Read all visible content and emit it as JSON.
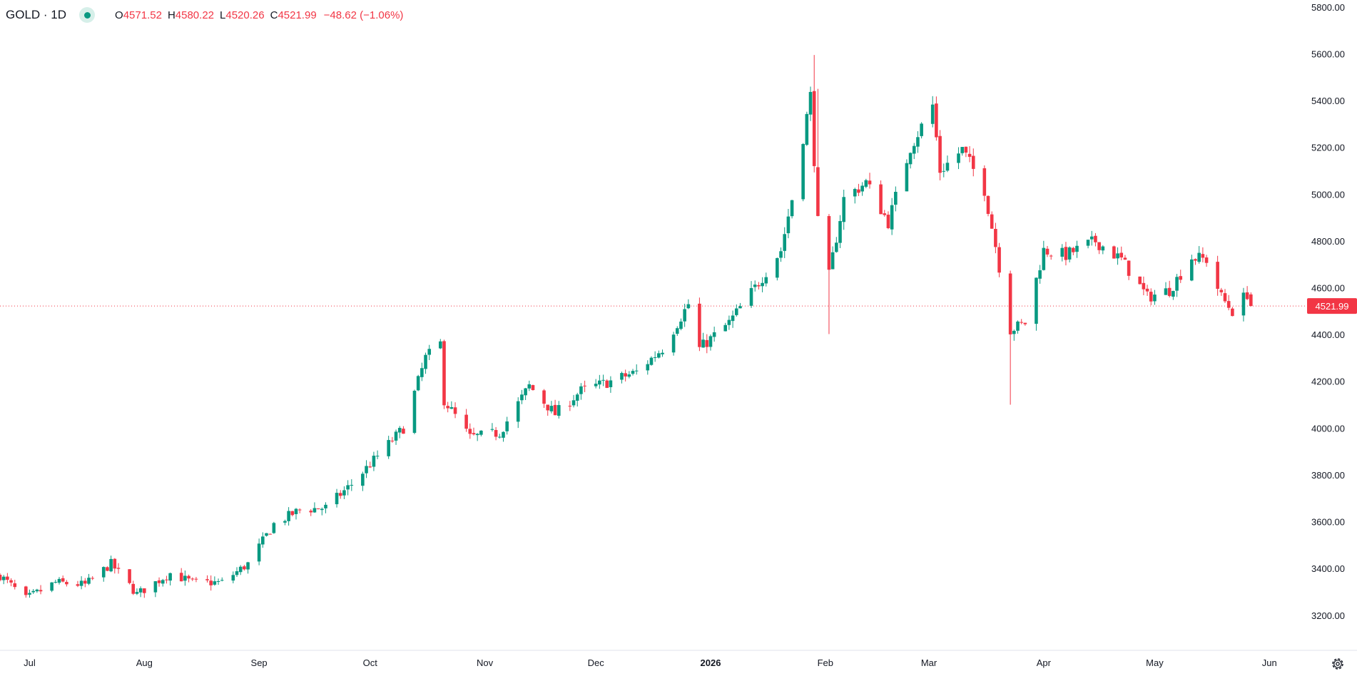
{
  "legend": {
    "symbol": "GOLD · 1D",
    "open_label": "O",
    "open": "4571.52",
    "high_label": "H",
    "high": "4580.22",
    "low_label": "L",
    "low": "4520.26",
    "close_label": "C",
    "close": "4521.99",
    "change": "−48.62 (−1.06%)",
    "status_color": "#089981"
  },
  "colors": {
    "up": "#089981",
    "down": "#f23645",
    "axis_text": "#131722",
    "price_line": "#f23645"
  },
  "settings_icon": "gear-icon",
  "chart_data": {
    "type": "candlestick",
    "title": "",
    "ylim": [
      3050,
      5830
    ],
    "y_ticks": [
      3200,
      3400,
      3600,
      3800,
      4000,
      4200,
      4400,
      4600,
      4800,
      5000,
      5200,
      5400,
      5600,
      5800
    ],
    "y_tick_labels": [
      "3200.00",
      "3400.00",
      "3600.00",
      "3800.00",
      "4000.00",
      "4200.00",
      "4400.00",
      "4600.00",
      "4800.00",
      "5000.00",
      "5200.00",
      "5400.00",
      "5600.00",
      "5800.00"
    ],
    "x_labels": [
      {
        "label": "Jul",
        "date": "2025-07-01"
      },
      {
        "label": "Aug",
        "date": "2025-08-01"
      },
      {
        "label": "Sep",
        "date": "2025-09-01"
      },
      {
        "label": "Oct",
        "date": "2025-10-01"
      },
      {
        "label": "Nov",
        "date": "2025-11-01"
      },
      {
        "label": "Dec",
        "date": "2025-12-01"
      },
      {
        "label": "2026",
        "date": "2026-01-01",
        "bold": true
      },
      {
        "label": "Feb",
        "date": "2026-02-01"
      },
      {
        "label": "Mar",
        "date": "2026-03-01"
      },
      {
        "label": "Apr",
        "date": "2026-04-01"
      },
      {
        "label": "May",
        "date": "2026-05-01"
      },
      {
        "label": "Jun",
        "date": "2026-06-01"
      }
    ],
    "last_price": 4521.99,
    "last_price_label": "4521.99",
    "anchors": [
      [
        "2025-06-23",
        3370
      ],
      [
        "2025-06-30",
        3270
      ],
      [
        "2025-07-08",
        3340
      ],
      [
        "2025-07-16",
        3330
      ],
      [
        "2025-07-23",
        3420
      ],
      [
        "2025-07-30",
        3290
      ],
      [
        "2025-08-08",
        3380
      ],
      [
        "2025-08-14",
        3340
      ],
      [
        "2025-08-22",
        3340
      ],
      [
        "2025-08-29",
        3420
      ],
      [
        "2025-09-05",
        3590
      ],
      [
        "2025-09-12",
        3650
      ],
      [
        "2025-09-19",
        3660
      ],
      [
        "2025-09-26",
        3760
      ],
      [
        "2025-10-03",
        3880
      ],
      [
        "2025-10-10",
        4000
      ],
      [
        "2025-10-16",
        4300
      ],
      [
        "2025-10-20",
        4360
      ],
      [
        "2025-10-21",
        4120
      ],
      [
        "2025-10-28",
        3960
      ],
      [
        "2025-11-05",
        3980
      ],
      [
        "2025-11-13",
        4180
      ],
      [
        "2025-11-20",
        4060
      ],
      [
        "2025-11-27",
        4160
      ],
      [
        "2025-12-05",
        4200
      ],
      [
        "2025-12-12",
        4240
      ],
      [
        "2025-12-19",
        4340
      ],
      [
        "2025-12-26",
        4530
      ],
      [
        "2025-12-29",
        4340
      ],
      [
        "2026-01-06",
        4450
      ],
      [
        "2026-01-13",
        4600
      ],
      [
        "2026-01-20",
        4760
      ],
      [
        "2026-01-23",
        4980
      ],
      [
        "2026-01-28",
        5420
      ],
      [
        "2026-01-30",
        4880
      ],
      [
        "2026-02-02",
        4650
      ],
      [
        "2026-02-06",
        4980
      ],
      [
        "2026-02-12",
        5050
      ],
      [
        "2026-02-18",
        4880
      ],
      [
        "2026-02-24",
        5200
      ],
      [
        "2026-03-02",
        5380
      ],
      [
        "2026-03-04",
        5100
      ],
      [
        "2026-03-10",
        5190
      ],
      [
        "2026-03-16",
        5020
      ],
      [
        "2026-03-19",
        4780
      ],
      [
        "2026-03-23",
        4420
      ],
      [
        "2026-03-27",
        4450
      ],
      [
        "2026-04-01",
        4760
      ],
      [
        "2026-04-07",
        4740
      ],
      [
        "2026-04-15",
        4800
      ],
      [
        "2026-04-22",
        4720
      ],
      [
        "2026-04-29",
        4560
      ],
      [
        "2026-05-05",
        4590
      ],
      [
        "2026-05-11",
        4730
      ],
      [
        "2026-05-15",
        4720
      ],
      [
        "2026-05-19",
        4560
      ],
      [
        "2026-05-22",
        4500
      ],
      [
        "2026-05-26",
        4575
      ]
    ],
    "last_bar": {
      "date": "2026-05-27",
      "open": 4571.52,
      "high": 4580.22,
      "low": 4520.26,
      "close": 4521.99
    }
  }
}
